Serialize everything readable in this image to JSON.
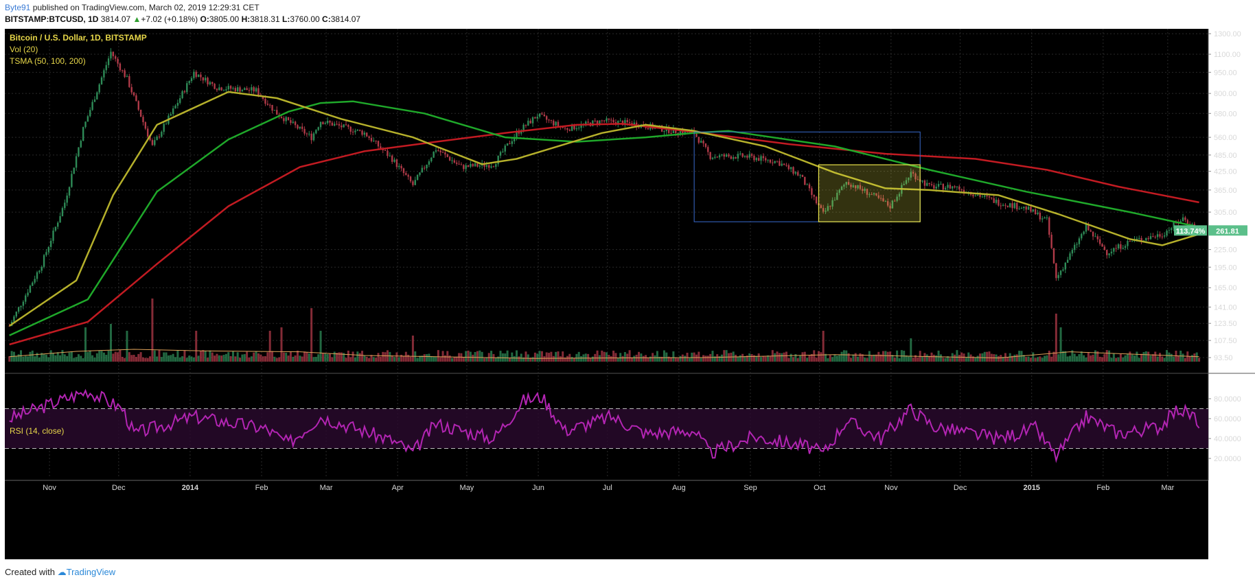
{
  "header": {
    "author": "Byte91",
    "published_text": " published on TradingView.com, March 02, 2019 12:29:31 CET",
    "symbol": "BITSTAMP:BTCUSD, 1D",
    "last": "3814.07",
    "change": "+7.02 (+0.18%)",
    "o_label": "O:",
    "o": "3805.00",
    "h_label": "H:",
    "h": "3818.31",
    "l_label": "L:",
    "l": "3760.00",
    "c_label": "C:",
    "c": "3814.07"
  },
  "legend": {
    "title": "Bitcoin / U.S. Dollar, 1D, BITSTAMP",
    "vol": "Vol (20)",
    "tsma": "TSMA (50, 100, 200)",
    "rsi": "RSI (14, close)"
  },
  "footer": {
    "created_with": "Created with",
    "brand": "TradingView"
  },
  "colors": {
    "background": "#000000",
    "up": "#2e8b57",
    "down": "#b03a48",
    "sma50": "#b5b02b",
    "sma100": "#1fa82a",
    "sma200": "#c21b22",
    "rsi": "#b325b3",
    "box_blue": "#3a6cd0",
    "box_yellow": "#e8e24a",
    "price_tag": "#5bbf8a"
  },
  "chart_data": {
    "type": "candlestick",
    "price_axis": {
      "scale": "log",
      "ticks": [
        "1300.00",
        "1100.00",
        "950.00",
        "800.00",
        "680.00",
        "560.00",
        "485.00",
        "425.00",
        "365.00",
        "305.00",
        "225.00",
        "195.00",
        "165.00",
        "141.00",
        "123.50",
        "107.50",
        "93.50"
      ]
    },
    "time_axis": {
      "labels": [
        "Nov",
        "Dec",
        "2014",
        "Feb",
        "Mar",
        "Apr",
        "May",
        "Jun",
        "Jul",
        "Aug",
        "Sep",
        "Oct",
        "Nov",
        "Dec",
        "2015",
        "Feb",
        "Mar"
      ]
    },
    "rsi_axis": {
      "range": [
        0,
        100
      ],
      "ticks": [
        "80.0000",
        "60.0000",
        "40.0000",
        "20.0000"
      ],
      "bands": [
        30,
        70
      ]
    },
    "price_path": [
      [
        "Oct 17 2013",
        121
      ],
      [
        "Oct 31 2013",
        200
      ],
      [
        "Nov 10 2013",
        330
      ],
      [
        "Nov 18 2013",
        600
      ],
      [
        "Nov 30 2013",
        1120
      ],
      [
        "Dec 7 2013",
        900
      ],
      [
        "Dec 18 2013",
        520
      ],
      [
        "Dec 28 2013",
        720
      ],
      [
        "Jan 5 2014",
        950
      ],
      [
        "Jan 15 2014",
        840
      ],
      [
        "Feb 1 2014",
        820
      ],
      [
        "Feb 10 2014",
        680
      ],
      [
        "Feb 25 2014",
        560
      ],
      [
        "Mar 1 2014",
        640
      ],
      [
        "Mar 20 2014",
        580
      ],
      [
        "Apr 1 2014",
        470
      ],
      [
        "Apr 10 2014",
        380
      ],
      [
        "Apr 20 2014",
        510
      ],
      [
        "May 1 2014",
        440
      ],
      [
        "May 15 2014",
        450
      ],
      [
        "May 25 2014",
        580
      ],
      [
        "Jun 3 2014",
        670
      ],
      [
        "Jun 15 2014",
        600
      ],
      [
        "Jul 1 2014",
        640
      ],
      [
        "Jul 15 2014",
        625
      ],
      [
        "Aug 1 2014",
        590
      ],
      [
        "Aug 10 2014",
        580
      ],
      [
        "Aug 17 2014",
        480
      ],
      [
        "Sep 1 2014",
        480
      ],
      [
        "Sep 15 2014",
        460
      ],
      [
        "Sep 25 2014",
        410
      ],
      [
        "Oct 5 2014",
        300
      ],
      [
        "Oct 15 2014",
        390
      ],
      [
        "Oct 25 2014",
        355
      ],
      [
        "Nov 3 2014",
        320
      ],
      [
        "Nov 12 2014",
        420
      ],
      [
        "Nov 20 2014",
        375
      ],
      [
        "Dec 1 2014",
        375
      ],
      [
        "Dec 20 2014",
        330
      ],
      [
        "Jan 1 2015",
        315
      ],
      [
        "Jan 10 2015",
        285
      ],
      [
        "Jan 14 2015",
        178
      ],
      [
        "Jan 20 2015",
        215
      ],
      [
        "Jan 27 2015",
        270
      ],
      [
        "Feb 5 2015",
        220
      ],
      [
        "Feb 15 2015",
        240
      ],
      [
        "Mar 1 2015",
        255
      ],
      [
        "Mar 10 2015",
        290
      ],
      [
        "Mar 17 2015",
        262
      ]
    ],
    "volume_spikes": [
      [
        "Nov 19 2013",
        0.5
      ],
      [
        "Nov 30 2013",
        0.55
      ],
      [
        "Dec 7 2013",
        0.45
      ],
      [
        "Dec 18 2013",
        0.92
      ],
      [
        "Jan 6 2014",
        0.45
      ],
      [
        "Feb 7 2014",
        0.45
      ],
      [
        "Feb 12 2014",
        0.5
      ],
      [
        "Feb 25 2014",
        0.78
      ],
      [
        "Mar 1 2014",
        0.45
      ],
      [
        "Apr 10 2014",
        0.38
      ],
      [
        "Oct 5 2014",
        0.45
      ],
      [
        "Nov 12 2014",
        0.34
      ],
      [
        "Jan 14 2015",
        0.7
      ],
      [
        "Jan 16 2015",
        0.5
      ]
    ],
    "volume_ma": [
      [
        "Oct 17 2013",
        0.12
      ],
      [
        "Nov 15 2013",
        0.25
      ],
      [
        "Dec 10 2013",
        0.3
      ],
      [
        "Jan 10 2014",
        0.26
      ],
      [
        "Feb 20 2014",
        0.24
      ],
      [
        "Mar 20 2014",
        0.15
      ],
      [
        "Jun 1 2014",
        0.08
      ],
      [
        "Aug 15 2014",
        0.1
      ],
      [
        "Oct 10 2014",
        0.17
      ],
      [
        "Nov 15 2014",
        0.13
      ],
      [
        "Dec 20 2014",
        0.09
      ],
      [
        "Jan 20 2015",
        0.24
      ],
      [
        "Mar 17 2015",
        0.12
      ]
    ],
    "rsi_path": [
      [
        "Oct 17 2013",
        60
      ],
      [
        "Nov 20 2013",
        88
      ],
      [
        "Dec 5 2013",
        70
      ],
      [
        "Dec 10 2013",
        45
      ],
      [
        "Jan 5 2014",
        62
      ],
      [
        "Feb 5 2014",
        50
      ],
      [
        "Feb 15 2014",
        35
      ],
      [
        "Mar 1 2014",
        62
      ],
      [
        "Apr 1 2014",
        38
      ],
      [
        "Apr 10 2014",
        26
      ],
      [
        "Apr 20 2014",
        55
      ],
      [
        "May 15 2014",
        40
      ],
      [
        "May 28 2014",
        78
      ],
      [
        "Jun 5 2014",
        82
      ],
      [
        "Jun 15 2014",
        48
      ],
      [
        "Jul 5 2014",
        62
      ],
      [
        "Jul 20 2014",
        45
      ],
      [
        "Aug 10 2014",
        48
      ],
      [
        "Aug 17 2014",
        25
      ],
      [
        "Sep 5 2014",
        42
      ],
      [
        "Sep 28 2014",
        32
      ],
      [
        "Oct 5 2014",
        25
      ],
      [
        "Oct 15 2014",
        58
      ],
      [
        "Oct 30 2014",
        40
      ],
      [
        "Nov 12 2014",
        70
      ],
      [
        "Nov 22 2014",
        52
      ],
      [
        "Dec 20 2014",
        40
      ],
      [
        "Jan 5 2015",
        50
      ],
      [
        "Jan 14 2015",
        22
      ],
      [
        "Jan 27 2015",
        62
      ],
      [
        "Feb 10 2015",
        45
      ],
      [
        "Feb 28 2015",
        52
      ],
      [
        "Mar 8 2015",
        70
      ],
      [
        "Mar 15 2015",
        62
      ],
      [
        "Mar 17 2015",
        45
      ]
    ],
    "sma50": [
      [
        "Oct 17 2013",
        121
      ],
      [
        "Nov 15 2013",
        175
      ],
      [
        "Dec 1 2013",
        350
      ],
      [
        "Dec 20 2013",
        620
      ],
      [
        "Jan 20 2014",
        810
      ],
      [
        "Feb 10 2014",
        770
      ],
      [
        "Mar 10 2014",
        650
      ],
      [
        "Apr 10 2014",
        560
      ],
      [
        "May 10 2014",
        450
      ],
      [
        "May 25 2014",
        470
      ],
      [
        "Jul 1 2014",
        580
      ],
      [
        "Jul 20 2014",
        620
      ],
      [
        "Aug 10 2014",
        590
      ],
      [
        "Sep 10 2014",
        520
      ],
      [
        "Oct 10 2014",
        420
      ],
      [
        "Nov 1 2014",
        370
      ],
      [
        "Nov 20 2014",
        365
      ],
      [
        "Dec 20 2014",
        350
      ],
      [
        "Jan 15 2015",
        300
      ],
      [
        "Feb 15 2015",
        245
      ],
      [
        "Mar 1 2015",
        233
      ],
      [
        "Mar 17 2015",
        255
      ]
    ],
    "sma100": [
      [
        "Oct 17 2013",
        112
      ],
      [
        "Nov 20 2013",
        150
      ],
      [
        "Dec 20 2013",
        360
      ],
      [
        "Jan 20 2014",
        550
      ],
      [
        "Feb 15 2014",
        690
      ],
      [
        "Mar 1 2014",
        740
      ],
      [
        "Mar 15 2014",
        750
      ],
      [
        "Apr 15 2014",
        680
      ],
      [
        "May 20 2014",
        560
      ],
      [
        "Jun 20 2014",
        540
      ],
      [
        "Jul 20 2014",
        560
      ],
      [
        "Aug 10 2014",
        580
      ],
      [
        "Aug 25 2014",
        590
      ],
      [
        "Oct 10 2014",
        520
      ],
      [
        "Nov 20 2014",
        430
      ],
      [
        "Jan 1 2015",
        360
      ],
      [
        "Feb 15 2015",
        305
      ],
      [
        "Mar 17 2015",
        270
      ]
    ],
    "sma200": [
      [
        "Oct 17 2013",
        104
      ],
      [
        "Nov 20 2013",
        125
      ],
      [
        "Dec 20 2013",
        200
      ],
      [
        "Jan 20 2014",
        320
      ],
      [
        "Feb 20 2014",
        440
      ],
      [
        "Mar 20 2014",
        500
      ],
      [
        "Apr 20 2014",
        540
      ],
      [
        "May 20 2014",
        580
      ],
      [
        "Jun 20 2014",
        620
      ],
      [
        "Jul 10 2014",
        625
      ],
      [
        "Aug 10 2014",
        585
      ],
      [
        "Sep 20 2014",
        530
      ],
      [
        "Nov 1 2014",
        490
      ],
      [
        "Dec 10 2014",
        470
      ],
      [
        "Jan 10 2015",
        430
      ],
      [
        "Feb 10 2015",
        375
      ],
      [
        "Mar 17 2015",
        330
      ]
    ],
    "drawings": {
      "blue_box": {
        "from": "Aug 10 2014",
        "to": "Nov 16 2014",
        "top": 585,
        "bottom": 282
      },
      "yellow_box": {
        "from": "Oct 3 2014",
        "to": "Nov 16 2014",
        "top": 448,
        "bottom": 282
      }
    },
    "price_tags": {
      "percent": "113.74%",
      "price": "261.81"
    }
  }
}
